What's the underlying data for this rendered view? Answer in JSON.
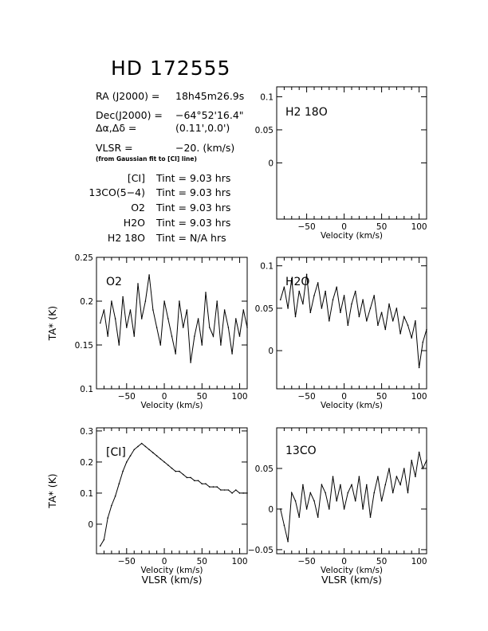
{
  "header": {
    "title": "HD 172555",
    "ra_label": "RA (J2000) =",
    "ra_value": "18h45m26.9s",
    "dec_label": "Dec(J2000) =",
    "dec_value": "−64°52'16.4\"",
    "offset_label": "Δα,Δδ =",
    "offset_value": "(0.11',0.0')",
    "vlsr_label": "VLSR =",
    "vlsr_value": "−20. (km/s)",
    "vlsr_note": "(from Gaussian fit to [CI] line)"
  },
  "integration_times": [
    {
      "line": "[CI]",
      "value": "Tint = 9.03 hrs"
    },
    {
      "line": "13CO(5−4)",
      "value": "Tint = 9.03 hrs"
    },
    {
      "line": "O2",
      "value": "Tint = 9.03 hrs"
    },
    {
      "line": "H2O",
      "value": "Tint = 9.03 hrs"
    },
    {
      "line": "H2 18O",
      "value": "Tint = N/A hrs"
    }
  ],
  "chart_data": [
    {
      "id": "h218o",
      "type": "line",
      "label": "H2 18O",
      "xlabel": "Velocity (km/s)",
      "ylabel": "",
      "xlim": [
        -90,
        110
      ],
      "ylim": [
        -0.085,
        0.115
      ],
      "x_ticks": [
        -50,
        0,
        50,
        100
      ],
      "y_ticks": [
        0,
        0.05,
        0.1
      ],
      "y_tick_labels": [
        "0",
        "0.05",
        "0.1"
      ],
      "series": []
    },
    {
      "id": "o2",
      "type": "line",
      "label": "O2",
      "xlabel": "Velocity (km/s)",
      "ylabel": "TA* (K)",
      "xlim": [
        -90,
        110
      ],
      "ylim": [
        0.1,
        0.25
      ],
      "x_ticks": [
        -50,
        0,
        50,
        100
      ],
      "y_ticks": [
        0.1,
        0.15,
        0.2,
        0.25
      ],
      "y_tick_labels": [
        "0.1",
        "0.15",
        "0.2",
        "0.25"
      ],
      "x_values": [
        -85,
        -80,
        -75,
        -70,
        -65,
        -60,
        -55,
        -50,
        -45,
        -40,
        -35,
        -30,
        -25,
        -20,
        -15,
        -10,
        -5,
        0,
        5,
        10,
        15,
        20,
        25,
        30,
        35,
        40,
        45,
        50,
        55,
        60,
        65,
        70,
        75,
        80,
        85,
        90,
        95,
        100,
        105,
        110
      ],
      "series": [
        {
          "values": [
            0.175,
            0.19,
            0.16,
            0.2,
            0.18,
            0.15,
            0.205,
            0.17,
            0.19,
            0.16,
            0.22,
            0.18,
            0.2,
            0.23,
            0.19,
            0.17,
            0.15,
            0.2,
            0.18,
            0.16,
            0.14,
            0.2,
            0.17,
            0.19,
            0.13,
            0.16,
            0.18,
            0.15,
            0.21,
            0.17,
            0.16,
            0.2,
            0.15,
            0.19,
            0.17,
            0.14,
            0.18,
            0.16,
            0.19,
            0.17
          ]
        }
      ]
    },
    {
      "id": "h2o",
      "type": "line",
      "label": "H2O",
      "xlabel": "Velocity (km/s)",
      "ylabel": "",
      "xlim": [
        -90,
        110
      ],
      "ylim": [
        -0.045,
        0.11
      ],
      "x_ticks": [
        -50,
        0,
        50,
        100
      ],
      "y_ticks": [
        0,
        0.05,
        0.1
      ],
      "y_tick_labels": [
        "0",
        "0.05",
        "0.1"
      ],
      "x_values": [
        -85,
        -80,
        -75,
        -70,
        -65,
        -60,
        -55,
        -50,
        -45,
        -40,
        -35,
        -30,
        -25,
        -20,
        -15,
        -10,
        -5,
        0,
        5,
        10,
        15,
        20,
        25,
        30,
        35,
        40,
        45,
        50,
        55,
        60,
        65,
        70,
        75,
        80,
        85,
        90,
        95,
        100,
        105,
        110
      ],
      "series": [
        {
          "values": [
            0.06,
            0.075,
            0.05,
            0.085,
            0.04,
            0.07,
            0.055,
            0.09,
            0.045,
            0.065,
            0.08,
            0.05,
            0.07,
            0.035,
            0.06,
            0.075,
            0.045,
            0.065,
            0.03,
            0.055,
            0.07,
            0.04,
            0.06,
            0.035,
            0.05,
            0.065,
            0.03,
            0.045,
            0.025,
            0.055,
            0.035,
            0.05,
            0.02,
            0.04,
            0.03,
            0.015,
            0.035,
            -0.02,
            0.01,
            0.025
          ]
        }
      ]
    },
    {
      "id": "ci",
      "type": "line",
      "label": "[CI]",
      "xlabel": "Velocity (km/s)",
      "xlabel2": "VLSR (km/s)",
      "ylabel": "TA* (K)",
      "xlim": [
        -90,
        110
      ],
      "ylim": [
        -0.095,
        0.31
      ],
      "x_ticks": [
        -50,
        0,
        50,
        100
      ],
      "y_ticks": [
        0,
        0.1,
        0.2,
        0.3
      ],
      "y_tick_labels": [
        "0",
        "0.1",
        "0.2",
        "0.3"
      ],
      "x_values": [
        -85,
        -80,
        -75,
        -70,
        -65,
        -60,
        -55,
        -50,
        -45,
        -40,
        -35,
        -30,
        -25,
        -20,
        -15,
        -10,
        -5,
        0,
        5,
        10,
        15,
        20,
        25,
        30,
        35,
        40,
        45,
        50,
        55,
        60,
        65,
        70,
        75,
        80,
        85,
        90,
        95,
        100,
        105,
        110
      ],
      "series": [
        {
          "values": [
            -0.07,
            -0.05,
            0.02,
            0.06,
            0.09,
            0.13,
            0.17,
            0.2,
            0.22,
            0.24,
            0.25,
            0.26,
            0.25,
            0.24,
            0.23,
            0.22,
            0.21,
            0.2,
            0.19,
            0.18,
            0.17,
            0.17,
            0.16,
            0.15,
            0.15,
            0.14,
            0.14,
            0.13,
            0.13,
            0.12,
            0.12,
            0.12,
            0.11,
            0.11,
            0.11,
            0.1,
            0.11,
            0.1,
            0.1,
            0.1
          ]
        }
      ]
    },
    {
      "id": "co13",
      "type": "line",
      "label": "13CO",
      "xlabel": "Velocity (km/s)",
      "xlabel2": "VLSR (km/s)",
      "ylabel": "",
      "xlim": [
        -90,
        110
      ],
      "ylim": [
        -0.055,
        0.1
      ],
      "x_ticks": [
        -50,
        0,
        50,
        100
      ],
      "y_ticks": [
        -0.05,
        0,
        0.05
      ],
      "y_tick_labels": [
        "−0.05",
        "0",
        "0.05"
      ],
      "x_values": [
        -85,
        -80,
        -75,
        -70,
        -65,
        -60,
        -55,
        -50,
        -45,
        -40,
        -35,
        -30,
        -25,
        -20,
        -15,
        -10,
        -5,
        0,
        5,
        10,
        15,
        20,
        25,
        30,
        35,
        40,
        45,
        50,
        55,
        60,
        65,
        70,
        75,
        80,
        85,
        90,
        95,
        100,
        105,
        110
      ],
      "series": [
        {
          "values": [
            0.0,
            -0.02,
            -0.04,
            0.02,
            0.01,
            -0.01,
            0.03,
            0.0,
            0.02,
            0.01,
            -0.01,
            0.03,
            0.02,
            0.0,
            0.04,
            0.01,
            0.03,
            0.0,
            0.02,
            0.03,
            0.01,
            0.04,
            0.0,
            0.03,
            -0.01,
            0.02,
            0.04,
            0.01,
            0.03,
            0.05,
            0.02,
            0.04,
            0.03,
            0.05,
            0.02,
            0.06,
            0.04,
            0.07,
            0.05,
            0.06
          ]
        }
      ]
    }
  ]
}
